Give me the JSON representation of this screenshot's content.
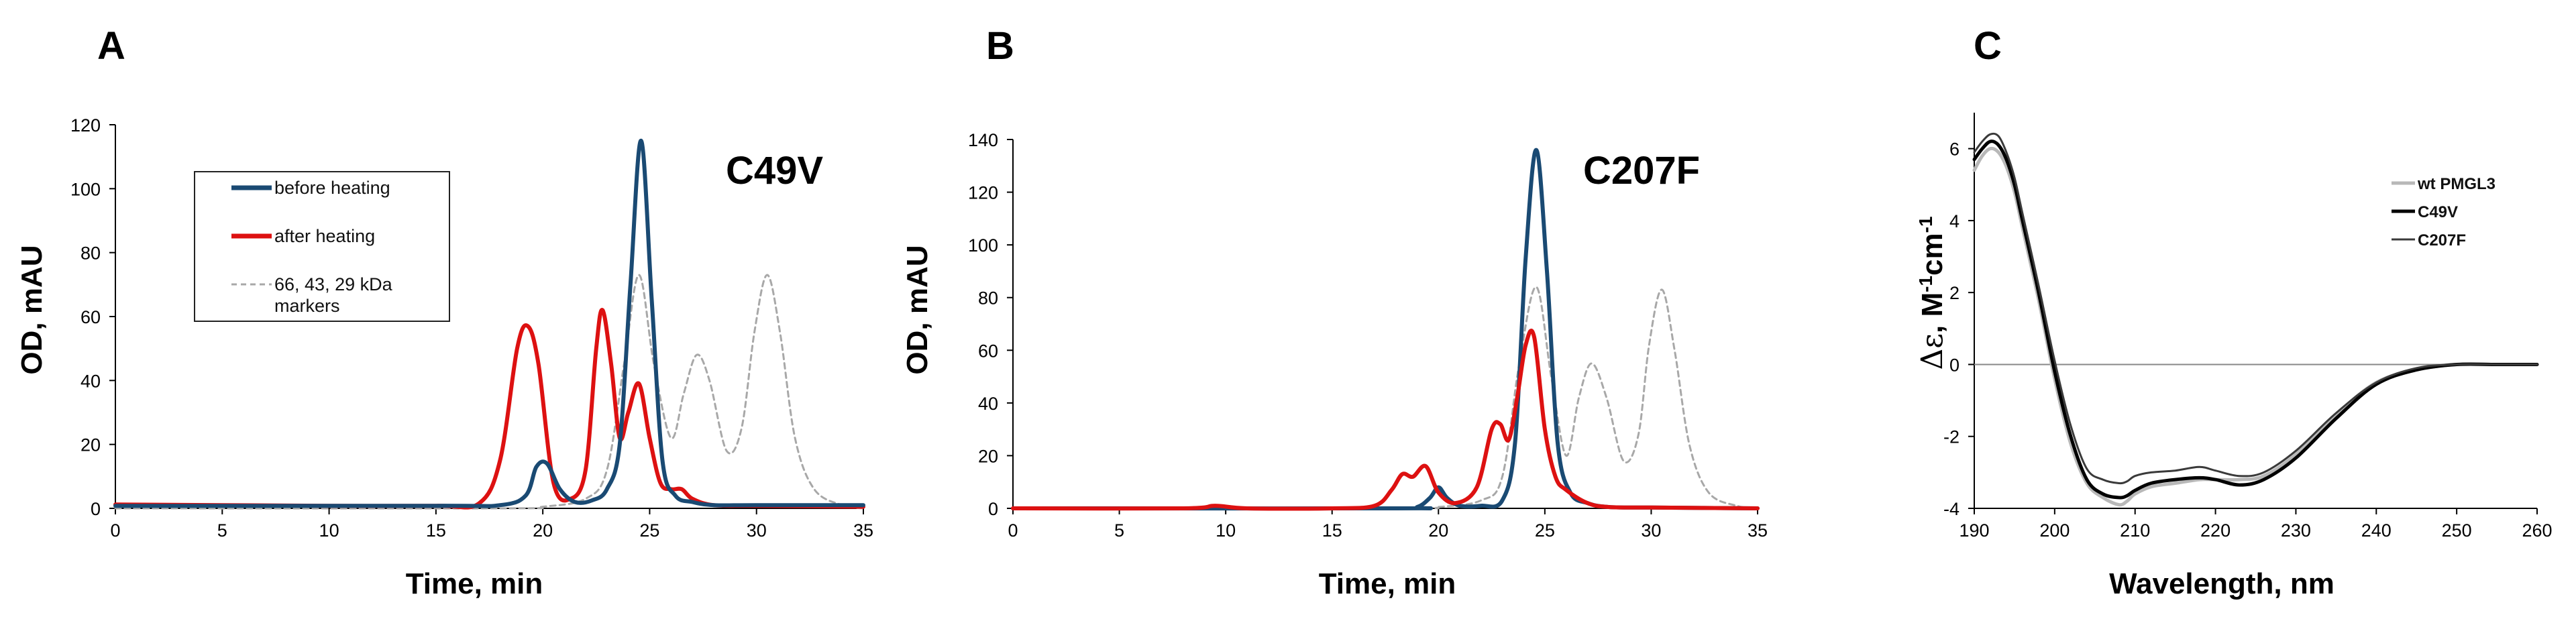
{
  "panels": {
    "A": {
      "letter": "A",
      "variant": "C49V"
    },
    "B": {
      "letter": "B",
      "variant": "C207F"
    },
    "C": {
      "letter": "C"
    }
  },
  "colors": {
    "before": "#1a4a73",
    "after": "#dd1111",
    "markers": "#a8a8a8",
    "wt": "#b8b8b8",
    "c49v": "#000000",
    "c207f": "#3a3a3a"
  },
  "chart_data": [
    {
      "type": "line",
      "panel": "A",
      "title": "C49V",
      "xlabel": "Time, min",
      "ylabel": "OD, mAU",
      "xlim": [
        0,
        35
      ],
      "ylim": [
        0,
        120
      ],
      "xticks": [
        "0",
        "5",
        "10",
        "15",
        "20",
        "25",
        "30",
        "35"
      ],
      "yticks": [
        "0",
        "20",
        "40",
        "60",
        "80",
        "100",
        "120"
      ],
      "legend": [
        "before heating",
        "after heating",
        "66, 43, 29 kDa",
        "markers"
      ],
      "series": [
        {
          "name": "before heating",
          "style": "solid",
          "x": [
            0,
            15,
            18,
            19.2,
            19.7,
            20.2,
            20.8,
            21.5,
            22.3,
            23,
            23.6,
            24.1,
            24.6,
            25.1,
            25.6,
            26.2,
            27,
            28,
            30,
            35
          ],
          "y": [
            0.8,
            0.8,
            1,
            4,
            13,
            14,
            6,
            2,
            2.5,
            6,
            20,
            70,
            115,
            65,
            15,
            4,
            2,
            1,
            1,
            1
          ]
        },
        {
          "name": "after heating",
          "style": "solid",
          "x": [
            0,
            5,
            10,
            15,
            17,
            18,
            18.8,
            19.3,
            19.8,
            20.5,
            21.3,
            22,
            22.5,
            22.8,
            23.2,
            23.6,
            24,
            24.5,
            25,
            25.5,
            26,
            26.5,
            27,
            28,
            30,
            35
          ],
          "y": [
            1.2,
            1,
            0.8,
            0.8,
            1.5,
            15,
            50,
            57,
            45,
            8,
            3,
            12,
            50,
            62,
            45,
            22,
            30,
            39,
            22,
            8,
            6,
            6,
            3,
            1,
            0.8,
            0.5
          ]
        },
        {
          "name": "66, 43, 29 kDa markers",
          "style": "dashed",
          "x": [
            0,
            18,
            20,
            22,
            23,
            23.8,
            24.5,
            25.2,
            26,
            26.6,
            27.2,
            27.8,
            28.6,
            29.3,
            29.9,
            30.5,
            31.1,
            31.8,
            32.7,
            34,
            35
          ],
          "y": [
            0,
            0,
            0.5,
            3,
            12,
            45,
            73,
            45,
            22,
            36,
            48,
            40,
            18,
            25,
            55,
            73,
            55,
            22,
            6,
            1,
            0
          ]
        }
      ]
    },
    {
      "type": "line",
      "panel": "B",
      "title": "C207F",
      "xlabel": "Time, min",
      "ylabel": "OD, mAU",
      "xlim": [
        0,
        35
      ],
      "ylim": [
        0,
        140
      ],
      "xticks": [
        "0",
        "5",
        "10",
        "15",
        "20",
        "25",
        "30",
        "35"
      ],
      "yticks": [
        "0",
        "20",
        "40",
        "60",
        "80",
        "100",
        "120",
        "140"
      ],
      "series": [
        {
          "name": "before heating",
          "style": "solid",
          "x": [
            0,
            18,
            19,
            19.6,
            20,
            20.4,
            21,
            22,
            23,
            23.6,
            24.1,
            24.6,
            25.1,
            25.6,
            26.2,
            27,
            28,
            30,
            35
          ],
          "y": [
            0,
            0,
            0.5,
            4,
            8,
            4,
            1,
            1,
            3,
            25,
            95,
            136,
            90,
            25,
            6,
            2,
            0.5,
            0.3,
            0
          ]
        },
        {
          "name": "after heating",
          "style": "solid",
          "x": [
            0,
            8,
            9.5,
            11,
            15,
            17,
            17.8,
            18.3,
            18.8,
            19.4,
            20,
            20.8,
            21.8,
            22.5,
            22.9,
            23.3,
            23.7,
            24.1,
            24.5,
            25,
            25.5,
            26,
            27,
            28,
            30,
            35
          ],
          "y": [
            0,
            0,
            1,
            0,
            0,
            1,
            7,
            13,
            12,
            16,
            6,
            2,
            8,
            30,
            32,
            26,
            42,
            62,
            65,
            30,
            12,
            7,
            2,
            0.5,
            0.3,
            0
          ]
        },
        {
          "name": "66, 43, 29 kDa markers",
          "style": "dashed",
          "x": [
            0,
            18,
            20,
            22,
            23,
            23.8,
            24.6,
            25.3,
            26,
            26.6,
            27.2,
            27.9,
            28.7,
            29.4,
            29.9,
            30.5,
            31.1,
            31.8,
            32.7,
            34,
            35
          ],
          "y": [
            0,
            0,
            0.5,
            3,
            12,
            55,
            84,
            50,
            20,
            42,
            55,
            42,
            18,
            28,
            62,
            83,
            60,
            24,
            6,
            1,
            0
          ]
        }
      ]
    },
    {
      "type": "line",
      "panel": "C",
      "xlabel": "Wavelength, nm",
      "ylabel": "Δε, M-1cm-1",
      "xlim": [
        190,
        260
      ],
      "ylim": [
        -4,
        7
      ],
      "xticks": [
        "190",
        "200",
        "210",
        "220",
        "230",
        "240",
        "250",
        "260"
      ],
      "yticks": [
        "-4",
        "-2",
        "0",
        "2",
        "4",
        "6"
      ],
      "legend": [
        "wt PMGL3",
        "C49V",
        "C207F"
      ],
      "series": [
        {
          "name": "wt PMGL3",
          "x": [
            190,
            191,
            192,
            193,
            194,
            195,
            196,
            198,
            200,
            202,
            204,
            206,
            208,
            209,
            210,
            212,
            215,
            218,
            220,
            223,
            226,
            230,
            235,
            240,
            245,
            250,
            255,
            260
          ],
          "y": [
            5.4,
            5.8,
            6.0,
            5.9,
            5.5,
            4.8,
            3.8,
            1.8,
            -0.4,
            -2.2,
            -3.3,
            -3.7,
            -3.9,
            -3.8,
            -3.6,
            -3.4,
            -3.3,
            -3.2,
            -3.2,
            -3.2,
            -3.1,
            -2.5,
            -1.4,
            -0.5,
            -0.15,
            0,
            0,
            0
          ]
        },
        {
          "name": "C49V",
          "x": [
            190,
            191,
            192,
            193,
            194,
            195,
            196,
            198,
            200,
            202,
            204,
            206,
            208,
            209,
            210,
            212,
            215,
            218,
            220,
            223,
            226,
            230,
            235,
            240,
            245,
            250,
            255,
            260
          ],
          "y": [
            5.7,
            6.0,
            6.2,
            6.1,
            5.7,
            5.0,
            4.0,
            2.0,
            -0.2,
            -2.0,
            -3.2,
            -3.6,
            -3.7,
            -3.65,
            -3.5,
            -3.3,
            -3.2,
            -3.15,
            -3.2,
            -3.35,
            -3.2,
            -2.6,
            -1.5,
            -0.55,
            -0.15,
            0,
            0,
            0
          ]
        },
        {
          "name": "C207F",
          "x": [
            190,
            191,
            192,
            193,
            194,
            195,
            196,
            198,
            200,
            202,
            204,
            206,
            208,
            209,
            210,
            212,
            215,
            218,
            220,
            223,
            226,
            230,
            235,
            240,
            245,
            250,
            255,
            260
          ],
          "y": [
            5.9,
            6.2,
            6.4,
            6.35,
            5.9,
            5.2,
            4.2,
            2.2,
            0.1,
            -1.7,
            -2.9,
            -3.2,
            -3.3,
            -3.25,
            -3.1,
            -3.0,
            -2.95,
            -2.85,
            -2.95,
            -3.1,
            -3.0,
            -2.4,
            -1.35,
            -0.5,
            -0.1,
            0,
            0,
            0
          ]
        }
      ]
    }
  ]
}
